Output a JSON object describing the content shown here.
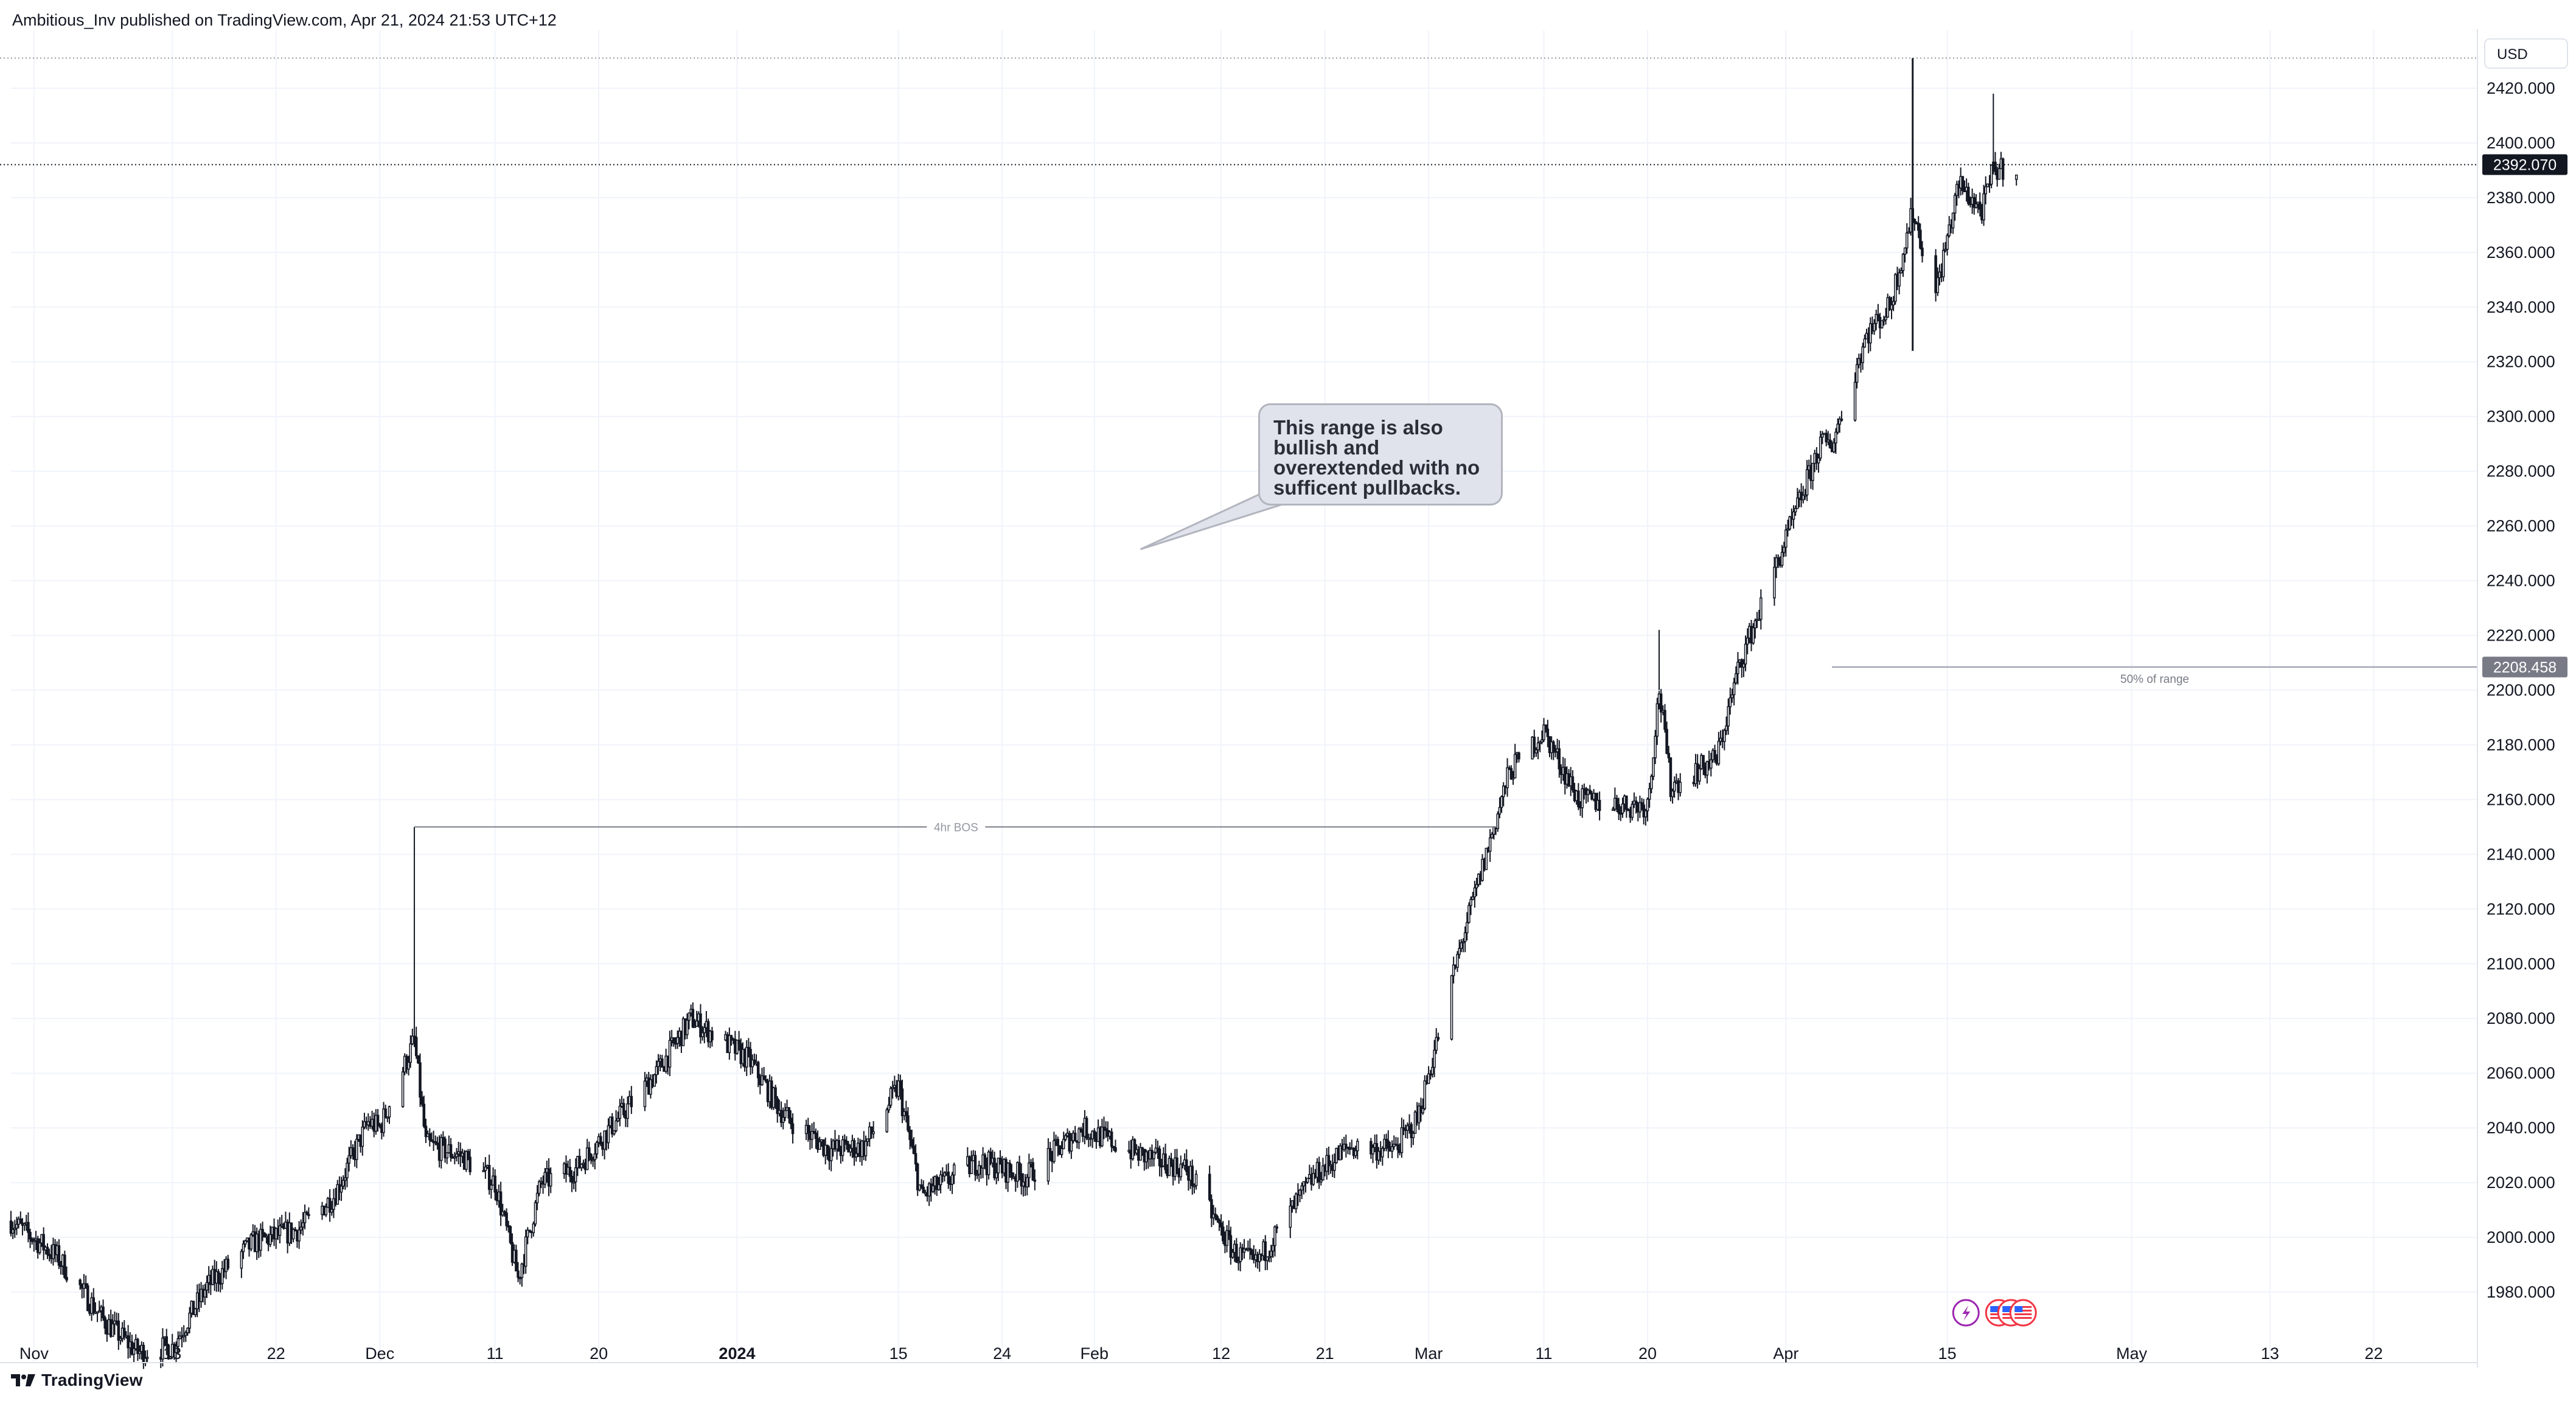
{
  "header": {
    "publisher": "Ambitious_Inv published on TradingView.com, Apr 21, 2024 21:53 UTC+12"
  },
  "footer": {
    "brand": "TradingView",
    "logo_icon": "tradingview-logo-icon"
  },
  "chart_data": {
    "type": "candlestick",
    "symbol_currency": "USD",
    "title": "",
    "xlabel": "",
    "ylabel": "",
    "grid": true,
    "y_axis": {
      "side": "right",
      "range": [
        1962,
        2440
      ],
      "ticks": [
        "1980.000",
        "2000.000",
        "2020.000",
        "2040.000",
        "2060.000",
        "2080.000",
        "2100.000",
        "2120.000",
        "2140.000",
        "2160.000",
        "2180.000",
        "2200.000",
        "2220.000",
        "2240.000",
        "2260.000",
        "2280.000",
        "2300.000",
        "2320.000",
        "2340.000",
        "2360.000",
        "2380.000",
        "2400.000",
        "2420.000"
      ]
    },
    "x_axis": {
      "range": [
        "2023-10-30",
        "2024-05-31"
      ],
      "ticks": [
        {
          "label": "Nov",
          "date": "2023-11-01",
          "bold": false
        },
        {
          "label": "13",
          "date": "2023-11-13",
          "bold": false
        },
        {
          "label": "22",
          "date": "2023-11-22",
          "bold": false
        },
        {
          "label": "Dec",
          "date": "2023-12-01",
          "bold": false
        },
        {
          "label": "11",
          "date": "2023-12-11",
          "bold": false
        },
        {
          "label": "20",
          "date": "2023-12-20",
          "bold": false
        },
        {
          "label": "2024",
          "date": "2024-01-01",
          "bold": true
        },
        {
          "label": "15",
          "date": "2024-01-15",
          "bold": false
        },
        {
          "label": "24",
          "date": "2024-01-24",
          "bold": false
        },
        {
          "label": "Feb",
          "date": "2024-02-01",
          "bold": false
        },
        {
          "label": "12",
          "date": "2024-02-12",
          "bold": false
        },
        {
          "label": "21",
          "date": "2024-02-21",
          "bold": false
        },
        {
          "label": "Mar",
          "date": "2024-03-01",
          "bold": false
        },
        {
          "label": "11",
          "date": "2024-03-11",
          "bold": false
        },
        {
          "label": "20",
          "date": "2024-03-20",
          "bold": false
        },
        {
          "label": "Apr",
          "date": "2024-04-01",
          "bold": false
        },
        {
          "label": "15",
          "date": "2024-04-15",
          "bold": false
        },
        {
          "label": "May",
          "date": "2024-05-01",
          "bold": false
        },
        {
          "label": "13",
          "date": "2024-05-13",
          "bold": false
        },
        {
          "label": "22",
          "date": "2024-05-22",
          "bold": false
        }
      ]
    },
    "price_path": [
      [
        "2023-10-30",
        2006
      ],
      [
        "2023-11-03",
        1993
      ],
      [
        "2023-11-07",
        1970
      ],
      [
        "2023-11-10",
        1958
      ],
      [
        "2023-11-13",
        1960
      ],
      [
        "2023-11-16",
        1982
      ],
      [
        "2023-11-20",
        1998
      ],
      [
        "2023-11-24",
        2003
      ],
      [
        "2023-11-27",
        2015
      ],
      [
        "2023-11-30",
        2042
      ],
      [
        "2023-12-01",
        2040
      ],
      [
        "2023-12-04",
        2072
      ],
      [
        "2023-12-05",
        2034
      ],
      [
        "2023-12-08",
        2030
      ],
      [
        "2023-12-11",
        2020
      ],
      [
        "2023-12-13",
        1985
      ],
      [
        "2023-12-15",
        2020
      ],
      [
        "2023-12-18",
        2025
      ],
      [
        "2023-12-21",
        2040
      ],
      [
        "2023-12-25",
        2060
      ],
      [
        "2023-12-28",
        2080
      ],
      [
        "2024-01-02",
        2065
      ],
      [
        "2024-01-05",
        2045
      ],
      [
        "2024-01-09",
        2032
      ],
      [
        "2024-01-12",
        2033
      ],
      [
        "2024-01-15",
        2055
      ],
      [
        "2024-01-17",
        2015
      ],
      [
        "2024-01-22",
        2028
      ],
      [
        "2024-01-26",
        2022
      ],
      [
        "2024-01-31",
        2040
      ],
      [
        "2024-02-05",
        2030
      ],
      [
        "2024-02-09",
        2025
      ],
      [
        "2024-02-13",
        1995
      ],
      [
        "2024-02-15",
        1990
      ],
      [
        "2024-02-20",
        2022
      ],
      [
        "2024-02-23",
        2033
      ],
      [
        "2024-02-27",
        2032
      ],
      [
        "2024-02-29",
        2043
      ],
      [
        "2024-03-04",
        2110
      ],
      [
        "2024-03-06",
        2140
      ],
      [
        "2024-03-08",
        2170
      ],
      [
        "2024-03-11",
        2185
      ],
      [
        "2024-03-14",
        2160
      ],
      [
        "2024-03-18",
        2158
      ],
      [
        "2024-03-20",
        2158
      ],
      [
        "2024-03-21",
        2200
      ],
      [
        "2024-03-22",
        2165
      ],
      [
        "2024-03-26",
        2175
      ],
      [
        "2024-03-28",
        2210
      ],
      [
        "2024-04-01",
        2255
      ],
      [
        "2024-04-04",
        2290
      ],
      [
        "2024-04-05",
        2290
      ],
      [
        "2024-04-08",
        2330
      ],
      [
        "2024-04-10",
        2340
      ],
      [
        "2024-04-12",
        2375
      ],
      [
        "2024-04-14",
        2345
      ],
      [
        "2024-04-16",
        2385
      ],
      [
        "2024-04-18",
        2375
      ],
      [
        "2024-04-19",
        2390
      ],
      [
        "2024-04-21",
        2392
      ]
    ],
    "price_extremes": {
      "high_date": "2024-04-12",
      "high": 2431,
      "low_date": "2024-04-12",
      "low": 2324
    },
    "spikes": [
      {
        "date": "2023-12-04",
        "high": 2150
      },
      {
        "date": "2024-03-21",
        "high": 2222
      },
      {
        "date": "2024-04-19",
        "high": 2418
      }
    ],
    "current_price": {
      "value": 2392.07,
      "label": "2392.070"
    },
    "high_line": {
      "value": 2431
    },
    "annotations": {
      "bos": {
        "label": "4hr BOS",
        "price": 2150,
        "from": "2023-12-04",
        "to": "2024-03-07"
      },
      "midline": {
        "label": "50% of range",
        "price": 2208.458,
        "price_label": "2208.458",
        "from": "2024-04-05"
      },
      "callout": {
        "text": "This range is also bullish and overextended with no sufficent pullbacks.",
        "points_to": "2024-02-05"
      }
    },
    "event_icons": [
      "lightning-icon",
      "us-flag-icon",
      "us-flag-icon",
      "us-flag-icon"
    ],
    "colors": {
      "candle_up": "#ffffff",
      "candle_down": "#131722",
      "wick": "#131722",
      "grid": "#f0f3fa",
      "bos_line": "#787b86",
      "midline": "#b2b5be",
      "price_tag": "#131722",
      "midline_tag": "#787b86",
      "lightning": "#9c27b0",
      "flag_red": "#f23645",
      "flag_blue": "#2962ff"
    }
  }
}
